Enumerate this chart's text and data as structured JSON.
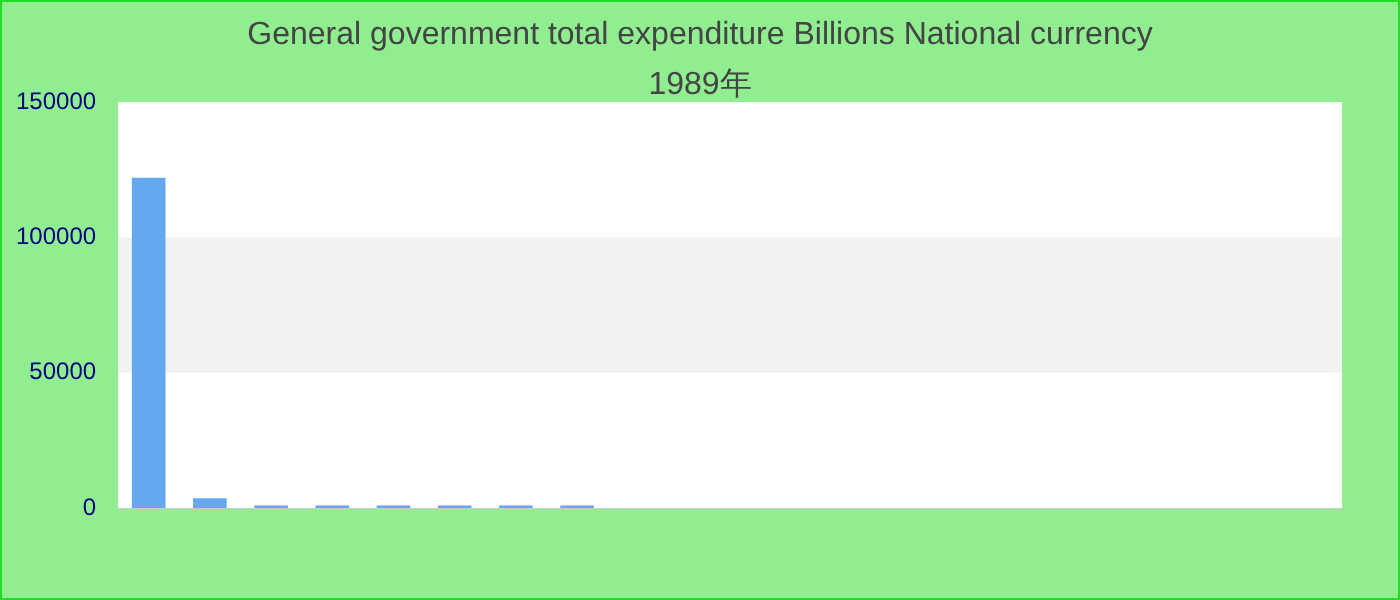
{
  "chart_data": {
    "type": "bar",
    "title": "General government total expenditure Billions National currency",
    "subtitle": "1989年",
    "categories": [
      null,
      null,
      null,
      null,
      null,
      null,
      null,
      null,
      null,
      null,
      null,
      null,
      null,
      null,
      null,
      null,
      null,
      null,
      null,
      null
    ],
    "values": [
      122000,
      3600,
      900,
      900,
      900,
      900,
      900,
      900,
      0,
      0,
      0,
      0,
      0,
      0,
      0,
      0,
      0,
      0,
      0,
      0
    ],
    "color": "#64a8f0",
    "ylim": [
      0,
      150000
    ],
    "yticks": [
      0,
      50000,
      100000,
      150000
    ],
    "bands": [
      {
        "axis": "y",
        "from": 50000,
        "to": 100000,
        "color": "#f2f2f2"
      }
    ]
  }
}
